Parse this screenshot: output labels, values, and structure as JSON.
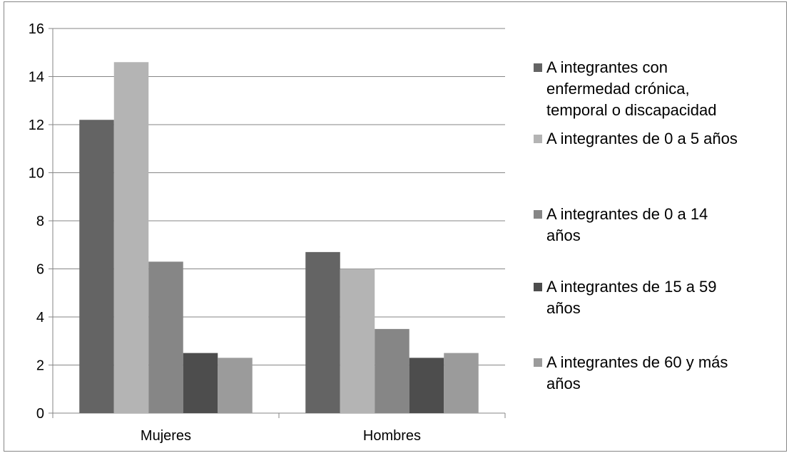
{
  "chart_data": {
    "type": "bar",
    "title": "",
    "xlabel": "",
    "ylabel": "",
    "categories": [
      "Mujeres",
      "Hombres"
    ],
    "ylim": [
      0,
      16
    ],
    "yticks": [
      "0",
      "2",
      "4",
      "6",
      "8",
      "10",
      "12",
      "14",
      "16"
    ],
    "grid": true,
    "legend_position": "right",
    "series": [
      {
        "name": "A integrantes con enfermedad crónica, temporal o discapacidad",
        "legend_lines": [
          "A integrantes con",
          "enfermedad crónica,",
          "temporal o discapacidad"
        ],
        "color": "#646464",
        "values": [
          12.2,
          6.7
        ]
      },
      {
        "name": "A integrantes de 0 a 5 años",
        "legend_lines": [
          "A integrantes de 0 a 5 años"
        ],
        "color": "#b4b4b4",
        "values": [
          14.6,
          6.0
        ]
      },
      {
        "name": "A integrantes de 0 a 14 años",
        "legend_lines": [
          "A integrantes de 0 a 14",
          "años"
        ],
        "color": "#868686",
        "values": [
          6.3,
          3.5
        ]
      },
      {
        "name": "A integrantes de 15 a 59 años",
        "legend_lines": [
          "A integrantes de 15 a 59",
          "años"
        ],
        "color": "#4d4d4d",
        "values": [
          2.5,
          2.3
        ]
      },
      {
        "name": "A integrantes de 60 y más años",
        "legend_lines": [
          "A integrantes de 60 y más",
          "años"
        ],
        "color": "#9b9b9b",
        "values": [
          2.3,
          2.5
        ]
      }
    ]
  }
}
